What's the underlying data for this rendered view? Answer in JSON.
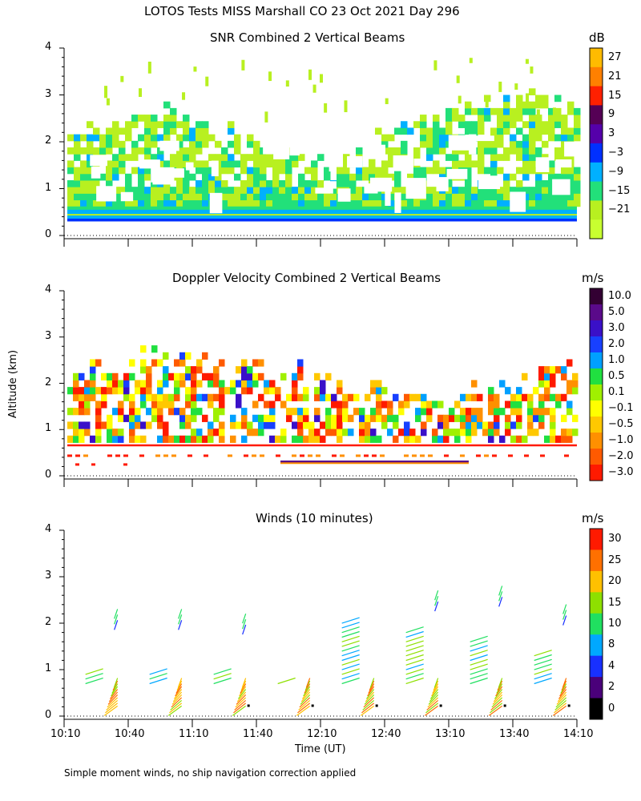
{
  "figure": {
    "title": "LOTOS Tests MISS Marshall CO  23 Oct 2021 Day 296",
    "footnote": "Simple moment winds, no ship navigation correction applied",
    "shared_ylabel": "Altitude (km)",
    "shared_xlabel": "Time (UT)"
  },
  "chart_data": [
    {
      "type": "heatmap",
      "title": "SNR Combined 2 Vertical Beams",
      "ylabel": "Altitude (km)",
      "ylim": [
        0,
        4
      ],
      "yticks": [
        "0",
        "1",
        "2",
        "3",
        "4"
      ],
      "xlim": [
        "10:10",
        "14:10"
      ],
      "colorbar": {
        "unit": "dB",
        "labels": [
          "27",
          "21",
          "15",
          "9",
          "3",
          "−3",
          "−9",
          "−15",
          "−21"
        ],
        "colors": [
          "#ffbb00",
          "#ff8000",
          "#ff2000",
          "#550055",
          "#5500aa",
          "#0030ff",
          "#00b0ff",
          "#22e07a",
          "#b8f020",
          "#c8ff30"
        ]
      }
    },
    {
      "type": "heatmap",
      "title": "Doppler Velocity Combined 2 Vertical Beams",
      "ylabel": "Altitude (km)",
      "ylim": [
        0,
        4
      ],
      "yticks": [
        "0",
        "1",
        "2",
        "3",
        "4"
      ],
      "xlim": [
        "10:10",
        "14:10"
      ],
      "colorbar": {
        "unit": "m/s",
        "labels": [
          "10.0",
          "5.0",
          "3.0",
          "2.0",
          "1.0",
          "0.5",
          "0.1",
          "−0.1",
          "−0.5",
          "−1.0",
          "−2.0",
          "−3.0"
        ],
        "colors": [
          "#330033",
          "#5a0a8a",
          "#3a10c8",
          "#1840ff",
          "#00a0ff",
          "#20e040",
          "#a0f000",
          "#ffff00",
          "#ffc800",
          "#ff9000",
          "#ff5a00",
          "#ff1a00"
        ]
      }
    },
    {
      "type": "scatter",
      "title": "Winds (10 minutes)",
      "ylabel": "Altitude (km)",
      "xlabel": "Time (UT)",
      "ylim": [
        0,
        4
      ],
      "yticks": [
        "0",
        "1",
        "2",
        "3",
        "4"
      ],
      "xticks": [
        "10:10",
        "10:40",
        "11:10",
        "11:40",
        "12:10",
        "12:40",
        "13:10",
        "13:40",
        "14:10"
      ],
      "xlim_minutes": [
        610,
        850
      ],
      "colorbar": {
        "unit": "m/s",
        "labels": [
          "30",
          "25",
          "20",
          "15",
          "10",
          "8",
          "4",
          "2",
          "0"
        ],
        "colors": [
          "#ff1a00",
          "#ff7000",
          "#ffc000",
          "#8ee000",
          "#20e060",
          "#00a8ff",
          "#1830ff",
          "#4a007a",
          "#000000"
        ]
      },
      "profile_times_minutes": [
        635,
        665,
        695,
        725,
        755,
        785,
        815,
        845
      ]
    }
  ]
}
